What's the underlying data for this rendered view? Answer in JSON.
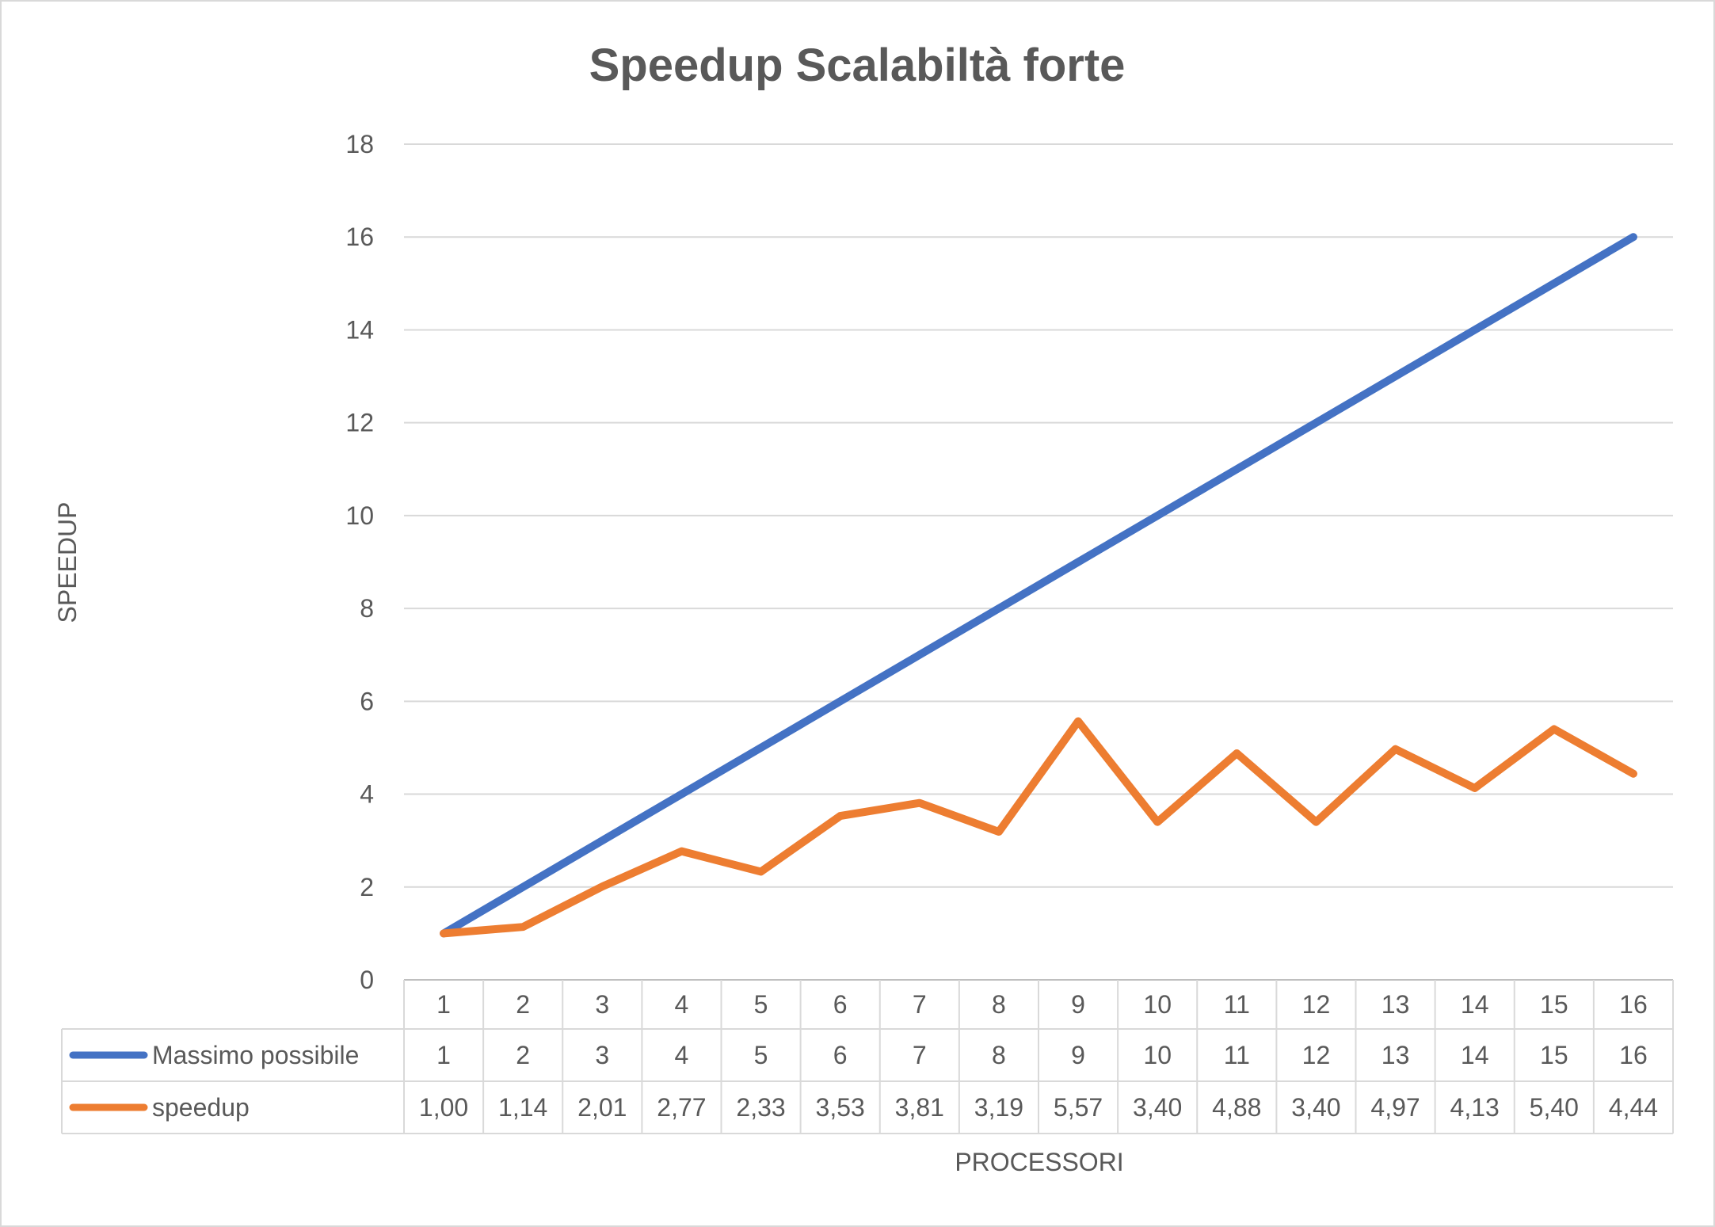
{
  "chart_data": {
    "type": "line",
    "title": "Speedup Scalabiltà forte",
    "xlabel": "PROCESSORI",
    "ylabel": "SPEEDUP",
    "categories": [
      "1",
      "2",
      "3",
      "4",
      "5",
      "6",
      "7",
      "8",
      "9",
      "10",
      "11",
      "12",
      "13",
      "14",
      "15",
      "16"
    ],
    "ylim": [
      0,
      18
    ],
    "yticks": [
      "0",
      "2",
      "4",
      "6",
      "8",
      "10",
      "12",
      "14",
      "16",
      "18"
    ],
    "grid": true,
    "legend": "data-table",
    "series": [
      {
        "name": "Massimo possibile",
        "color": "#4472C4",
        "values": [
          1,
          2,
          3,
          4,
          5,
          6,
          7,
          8,
          9,
          10,
          11,
          12,
          13,
          14,
          15,
          16
        ],
        "labels": [
          "1",
          "2",
          "3",
          "4",
          "5",
          "6",
          "7",
          "8",
          "9",
          "10",
          "11",
          "12",
          "13",
          "14",
          "15",
          "16"
        ]
      },
      {
        "name": "speedup",
        "color": "#ED7D31",
        "values": [
          1.0,
          1.14,
          2.01,
          2.77,
          2.33,
          3.53,
          3.81,
          3.19,
          5.57,
          3.4,
          4.88,
          3.4,
          4.97,
          4.13,
          5.4,
          4.44
        ],
        "labels": [
          "1,00",
          "1,14",
          "2,01",
          "2,77",
          "2,33",
          "3,53",
          "3,81",
          "3,19",
          "5,57",
          "3,40",
          "4,88",
          "3,40",
          "4,97",
          "4,13",
          "5,40",
          "4,44"
        ]
      }
    ]
  }
}
